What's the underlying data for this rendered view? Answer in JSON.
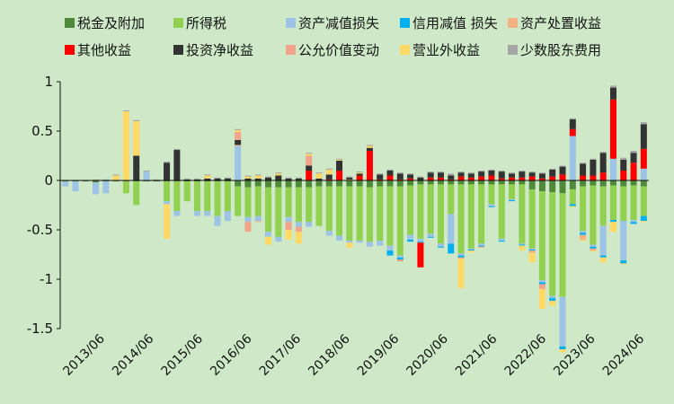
{
  "chart_data": {
    "type": "bar",
    "stacked": true,
    "title": "",
    "xlabel": "",
    "ylabel": "",
    "ylim": [
      -1.5,
      1
    ],
    "yticks": [
      -1.5,
      -1,
      -0.5,
      0,
      0.5,
      1
    ],
    "ytick_labels": [
      "-1.5",
      "-1",
      "-0.5",
      "0",
      "0.5",
      "1"
    ],
    "x_tick_labels": [
      "2013/06",
      "2014/06",
      "2015/06",
      "2016/06",
      "2017/06",
      "2018/06",
      "2019/06",
      "2020/06",
      "2021/06",
      "2022/06",
      "2023/06",
      "2024/06"
    ],
    "legend_position": "top",
    "series": [
      {
        "name": "税金及附加",
        "color": "#4e8a3a",
        "values": [
          -0.01,
          -0.01,
          -0.01,
          -0.02,
          -0.01,
          -0.01,
          -0.01,
          -0.01,
          -0.01,
          -0.01,
          -0.01,
          -0.01,
          -0.01,
          -0.01,
          -0.01,
          -0.01,
          -0.01,
          -0.06,
          -0.07,
          -0.06,
          -0.07,
          -0.07,
          -0.07,
          -0.07,
          -0.07,
          -0.06,
          -0.06,
          -0.06,
          -0.06,
          -0.06,
          -0.07,
          -0.06,
          -0.06,
          -0.06,
          -0.05,
          -0.04,
          -0.04,
          -0.04,
          -0.04,
          -0.04,
          -0.04,
          -0.04,
          -0.04,
          -0.04,
          -0.04,
          -0.04,
          -0.09,
          -0.11,
          -0.12,
          -0.13,
          -0.09,
          -0.06,
          -0.05,
          -0.06,
          -0.05,
          -0.06,
          -0.05,
          -0.06
        ]
      },
      {
        "name": "所得税",
        "color": "#92d050",
        "values": [
          0,
          0,
          0,
          0,
          0,
          0,
          -0.12,
          -0.24,
          0,
          0,
          -0.2,
          -0.3,
          -0.2,
          -0.3,
          -0.3,
          -0.35,
          -0.3,
          -0.3,
          -0.3,
          -0.3,
          -0.45,
          -0.5,
          -0.3,
          -0.35,
          -0.35,
          -0.4,
          -0.45,
          -0.5,
          -0.55,
          -0.55,
          -0.55,
          -0.55,
          -0.6,
          -0.7,
          -0.5,
          -0.55,
          -0.5,
          -0.6,
          -0.3,
          -0.7,
          -0.65,
          -0.6,
          -0.2,
          -0.55,
          -0.15,
          -0.6,
          -0.6,
          -0.9,
          -1.05,
          -1.05,
          -0.15,
          -0.45,
          -0.6,
          -0.4,
          -0.35,
          -0.35,
          -0.35,
          -0.3
        ]
      },
      {
        "name": "资产减值损失",
        "color": "#9dc3e6",
        "values": [
          -0.05,
          -0.1,
          0,
          -0.12,
          -0.12,
          0,
          0,
          0,
          0.09,
          0,
          -0.03,
          -0.05,
          0,
          -0.05,
          -0.05,
          -0.1,
          -0.1,
          0.35,
          -0.05,
          -0.05,
          -0.05,
          -0.05,
          -0.05,
          -0.05,
          -0.05,
          0,
          -0.05,
          -0.05,
          -0.02,
          -0.02,
          -0.05,
          -0.05,
          -0.05,
          -0.02,
          -0.05,
          -0.03,
          -0.03,
          -0.03,
          -0.3,
          -0.02,
          -0.01,
          -0.02,
          -0.02,
          -0.02,
          -0.01,
          -0.01,
          -0.01,
          -0.02,
          -0.02,
          -0.5,
          0.45,
          -0.02,
          -0.02,
          -0.3,
          0.22,
          -0.4,
          -0.02,
          0.12
        ]
      },
      {
        "name": "信用减值 损失",
        "color": "#00b0f0",
        "values": [
          0,
          0,
          0,
          0,
          0,
          0,
          0,
          0,
          0,
          0,
          0,
          0,
          0,
          0,
          0,
          0,
          0,
          0,
          0,
          0,
          0,
          0,
          0,
          0,
          0,
          0,
          0,
          0,
          0,
          0,
          0,
          0,
          -0.05,
          -0.02,
          -0.02,
          -0.01,
          -0.01,
          -0.01,
          -0.1,
          -0.02,
          -0.01,
          -0.01,
          -0.01,
          -0.01,
          -0.01,
          -0.01,
          -0.01,
          -0.02,
          -0.03,
          -0.03,
          -0.02,
          -0.02,
          -0.02,
          -0.02,
          -0.02,
          -0.03,
          -0.02,
          -0.05
        ]
      },
      {
        "name": "资产处置收益",
        "color": "#f4b183",
        "values": [
          0,
          0,
          0,
          0,
          0,
          0,
          0,
          0,
          0,
          0,
          0,
          0,
          0,
          0,
          0,
          0,
          0,
          0.01,
          0,
          -0.01,
          0,
          0,
          0,
          0,
          0,
          0,
          0,
          0,
          0.01,
          0,
          0,
          0,
          0,
          0,
          0,
          0,
          0,
          0,
          0,
          0,
          0,
          0,
          0,
          0,
          0,
          0,
          0,
          0,
          0,
          0,
          0,
          -0.05,
          -0.01,
          0,
          0,
          0,
          0,
          0
        ]
      },
      {
        "name": "其他收益",
        "color": "#ff0000",
        "values": [
          0,
          0,
          0,
          0,
          0,
          0,
          0,
          0,
          0,
          0,
          0,
          0,
          0,
          0,
          0,
          0,
          0,
          0,
          0,
          0,
          0,
          0,
          0,
          0,
          0.1,
          0,
          0.01,
          0.1,
          0,
          0.05,
          0.3,
          0.01,
          0.05,
          0.01,
          0.02,
          -0.25,
          0.03,
          0.03,
          0.01,
          0.04,
          0.03,
          0.04,
          0.05,
          0.02,
          0.03,
          0.03,
          0.04,
          0.02,
          0.04,
          0.06,
          0.07,
          0.05,
          0.05,
          0.08,
          0.6,
          0.1,
          0.18,
          0.2
        ]
      },
      {
        "name": "投资净收益",
        "color": "#333333",
        "values": [
          0,
          0,
          0,
          0,
          0,
          0,
          0,
          0.25,
          0,
          0,
          0.18,
          0.31,
          0.01,
          0.01,
          0.02,
          0.02,
          0.02,
          0.05,
          0.02,
          0.02,
          0.03,
          0.05,
          0.02,
          0.02,
          0.05,
          0.02,
          0.05,
          0.1,
          0.02,
          0.02,
          0.03,
          0.05,
          0.05,
          0.06,
          0.04,
          0.03,
          0.05,
          0.05,
          0.04,
          0.04,
          0.04,
          0.05,
          0.05,
          0.07,
          0.04,
          0.06,
          0.04,
          0.05,
          0.07,
          0.08,
          0.1,
          0.12,
          0.16,
          0.2,
          0.12,
          0.11,
          0.1,
          0.25
        ]
      },
      {
        "name": "公允价值变动",
        "color": "#f0a58a",
        "values": [
          0,
          0,
          0,
          0,
          0,
          0,
          0,
          0,
          0,
          0,
          0,
          0,
          0,
          0,
          0,
          0,
          0,
          0.08,
          -0.1,
          0,
          0,
          0,
          -0.08,
          -0.05,
          0.1,
          0,
          0,
          0,
          0,
          0,
          0,
          0,
          0,
          -0.02,
          0,
          0,
          0,
          0,
          0,
          -0.01,
          0,
          -0.01,
          0,
          0,
          0,
          0,
          -0.02,
          -0.05,
          0,
          0,
          0,
          0,
          -0.01,
          0,
          0,
          0,
          0,
          0
        ]
      },
      {
        "name": "营业外收益",
        "color": "#ffd966",
        "values": [
          0,
          0,
          0,
          0,
          0,
          0.05,
          0.7,
          0.35,
          0,
          0,
          -0.35,
          0,
          0,
          0,
          0.03,
          0,
          0,
          0.02,
          0.02,
          0.03,
          -0.08,
          0.02,
          -0.1,
          -0.12,
          0.02,
          0.05,
          0.05,
          0.01,
          -0.05,
          0.01,
          0.02,
          0,
          0,
          0,
          0,
          0,
          0,
          0,
          0,
          -0.3,
          -0.02,
          0,
          0,
          0,
          0,
          -0.05,
          -0.1,
          -0.2,
          -0.05,
          -0.03,
          -0.01,
          -0.01,
          -0.01,
          -0.05,
          -0.1,
          -0.01,
          0,
          -0.01
        ]
      },
      {
        "name": "少数股东费用",
        "color": "#a6a6a6",
        "values": [
          0,
          0,
          0,
          0.01,
          0.01,
          0.01,
          0.01,
          0.01,
          0.01,
          0.01,
          0.01,
          0.01,
          0.01,
          0.01,
          0.01,
          0.01,
          0.01,
          0.01,
          0.01,
          0.01,
          0.01,
          0.01,
          0.01,
          0.01,
          0.01,
          0.01,
          0.01,
          0.01,
          0.01,
          0.01,
          0.01,
          0.01,
          0.01,
          0.01,
          0.01,
          0.01,
          0.01,
          0.01,
          0.02,
          0.01,
          0.01,
          0.01,
          0.01,
          0.01,
          0.01,
          0.01,
          0.01,
          0.01,
          0.01,
          0.01,
          0.01,
          0.01,
          0.01,
          0.01,
          0.02,
          0.02,
          0.02,
          0.02
        ]
      }
    ]
  }
}
